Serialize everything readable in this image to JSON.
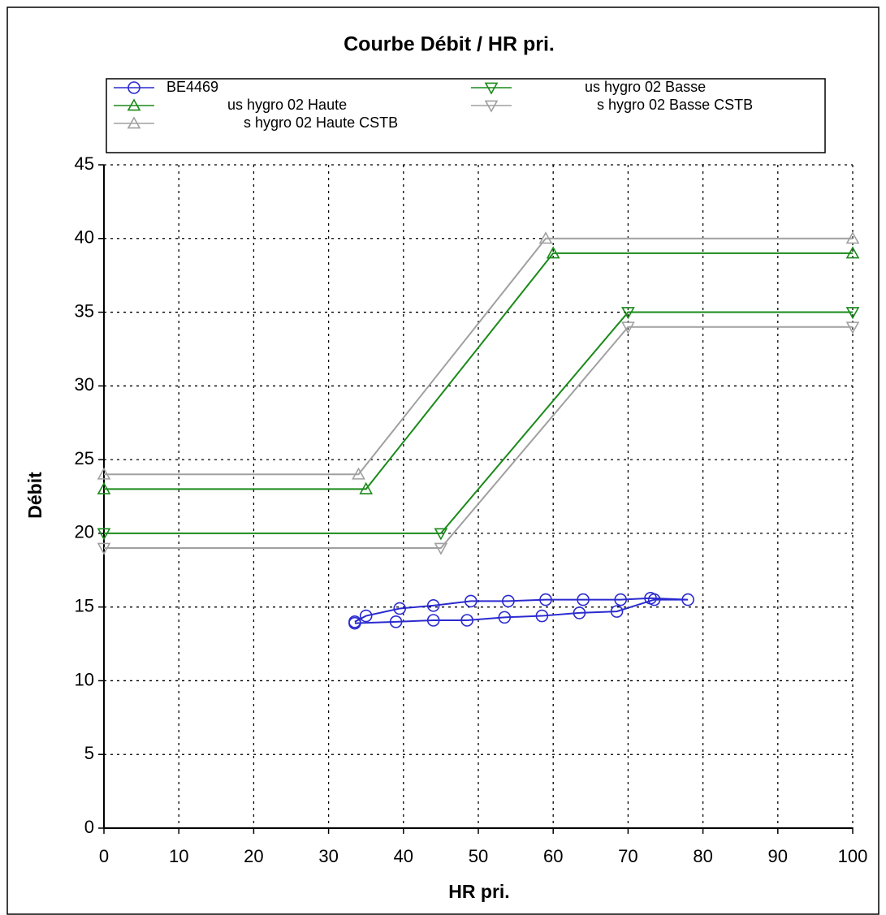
{
  "chart_data": {
    "type": "line",
    "title": "Courbe Débit / HR pri.",
    "x_label": "HR pri.",
    "y_label": "Débit",
    "xlim": [
      0,
      100
    ],
    "xticks": [
      0,
      10,
      20,
      30,
      40,
      50,
      60,
      70,
      80,
      90,
      100
    ],
    "ylim": [
      0,
      45
    ],
    "yticks": [
      0,
      5,
      10,
      15,
      20,
      25,
      30,
      35,
      40,
      45
    ],
    "grid": true,
    "series": [
      {
        "name": "BE4469",
        "color": "#2a2ad0",
        "marker": "circle",
        "x": [
          33.5,
          35,
          39.5,
          44,
          49,
          54,
          59,
          64,
          69,
          73,
          78,
          73.5,
          68.5,
          63.5,
          58.5,
          53.5,
          48.5,
          44,
          39,
          33.5
        ],
        "values": [
          14.0,
          14.4,
          14.9,
          15.1,
          15.4,
          15.4,
          15.5,
          15.5,
          15.5,
          15.6,
          15.5,
          15.5,
          14.7,
          14.6,
          14.4,
          14.3,
          14.1,
          14.1,
          14.0,
          13.9
        ]
      },
      {
        "name": "us hygro 02 Haute",
        "color": "#1a8a1a",
        "marker": "triangle-up",
        "x": [
          0,
          35,
          60,
          100
        ],
        "values": [
          23,
          23,
          39,
          39
        ]
      },
      {
        "name": "s hygro 02 Haute CSTB",
        "color": "#a0a0a0",
        "marker": "triangle-up",
        "x": [
          0,
          34,
          59,
          100
        ],
        "values": [
          24,
          24,
          40,
          40
        ]
      },
      {
        "name": "us hygro 02 Basse",
        "color": "#1a8a1a",
        "marker": "triangle-down",
        "x": [
          0,
          45,
          70,
          100
        ],
        "values": [
          20,
          20,
          35,
          35
        ]
      },
      {
        "name": "s hygro 02 Basse CSTB",
        "color": "#a0a0a0",
        "marker": "triangle-down",
        "x": [
          0,
          45,
          70,
          100
        ],
        "values": [
          19,
          19,
          34,
          34
        ]
      }
    ]
  }
}
